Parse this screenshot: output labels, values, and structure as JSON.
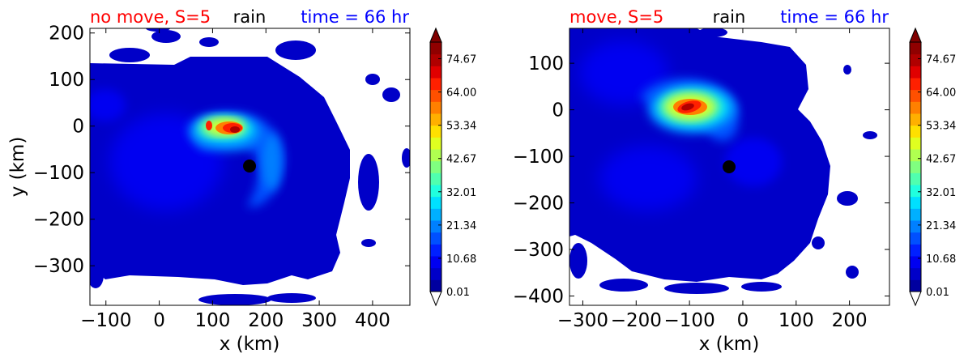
{
  "chart_data": [
    {
      "type": "heatmap",
      "title_left": "no move, S=5",
      "title_center": "rain",
      "title_right": "time = 66 hr",
      "xlabel": "x (km)",
      "ylabel": "y (km)",
      "xlim": [
        -130,
        470
      ],
      "ylim": [
        -385,
        210
      ],
      "xticks": [
        -100,
        0,
        100,
        200,
        300,
        400
      ],
      "yticks": [
        -300,
        -200,
        -100,
        0,
        100,
        200
      ],
      "storm_center": {
        "x": 168,
        "y": -85
      },
      "rain_max": {
        "x": 135,
        "y": 0
      }
    },
    {
      "type": "heatmap",
      "title_left": "move, S=5",
      "title_center": "rain",
      "title_right": "time = 66 hr",
      "xlabel": "x (km)",
      "ylabel": "",
      "xlim": [
        -325,
        275
      ],
      "ylim": [
        -420,
        175
      ],
      "xticks": [
        -300,
        -200,
        -100,
        0,
        100,
        200
      ],
      "yticks": [
        -400,
        -300,
        -200,
        -100,
        0,
        100
      ],
      "storm_center": {
        "x": -25,
        "y": -122
      },
      "rain_max": {
        "x": -100,
        "y": 5
      }
    }
  ],
  "colorbar": {
    "ticks": [
      "0.01",
      "10.68",
      "21.34",
      "32.01",
      "42.67",
      "53.34",
      "64.00",
      "74.67"
    ],
    "min": 0.01,
    "max": 80.0,
    "colors": [
      "#00009f",
      "#0000c8",
      "#0000f1",
      "#0020ff",
      "#0050ff",
      "#0080ff",
      "#00b0ff",
      "#00e0ff",
      "#20ffdf",
      "#50ffaf",
      "#80ff80",
      "#b0ff50",
      "#e0ff20",
      "#ffe000",
      "#ffb000",
      "#ff8000",
      "#ff5000",
      "#ff2000",
      "#e00000",
      "#b00000",
      "#900000"
    ],
    "under_color": "#ffffff",
    "over_color": "#800000"
  }
}
